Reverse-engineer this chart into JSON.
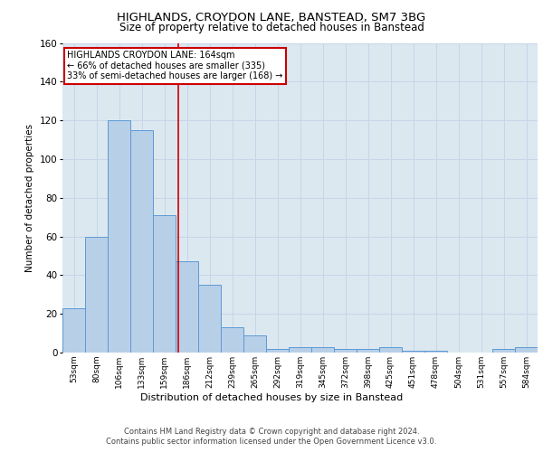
{
  "title1": "HIGHLANDS, CROYDON LANE, BANSTEAD, SM7 3BG",
  "title2": "Size of property relative to detached houses in Banstead",
  "xlabel": "Distribution of detached houses by size in Banstead",
  "ylabel": "Number of detached properties",
  "bar_labels": [
    "53sqm",
    "80sqm",
    "106sqm",
    "133sqm",
    "159sqm",
    "186sqm",
    "212sqm",
    "239sqm",
    "265sqm",
    "292sqm",
    "319sqm",
    "345sqm",
    "372sqm",
    "398sqm",
    "425sqm",
    "451sqm",
    "478sqm",
    "504sqm",
    "531sqm",
    "557sqm",
    "584sqm"
  ],
  "bar_values": [
    23,
    60,
    120,
    115,
    71,
    47,
    35,
    13,
    9,
    2,
    3,
    3,
    2,
    2,
    3,
    1,
    1,
    0,
    0,
    2,
    3
  ],
  "bar_color": "#b8cfe8",
  "bar_edge_color": "#5b9bd5",
  "bar_width": 1.0,
  "ylim": [
    0,
    160
  ],
  "yticks": [
    0,
    20,
    40,
    60,
    80,
    100,
    120,
    140,
    160
  ],
  "red_line_x": 4.62,
  "annotation_text": "HIGHLANDS CROYDON LANE: 164sqm\n← 66% of detached houses are smaller (335)\n33% of semi-detached houses are larger (168) →",
  "annotation_box_color": "#ffffff",
  "annotation_border_color": "#cc0000",
  "footer1": "Contains HM Land Registry data © Crown copyright and database right 2024.",
  "footer2": "Contains public sector information licensed under the Open Government Licence v3.0.",
  "grid_color": "#c8d4e8",
  "background_color": "#dce8f0"
}
